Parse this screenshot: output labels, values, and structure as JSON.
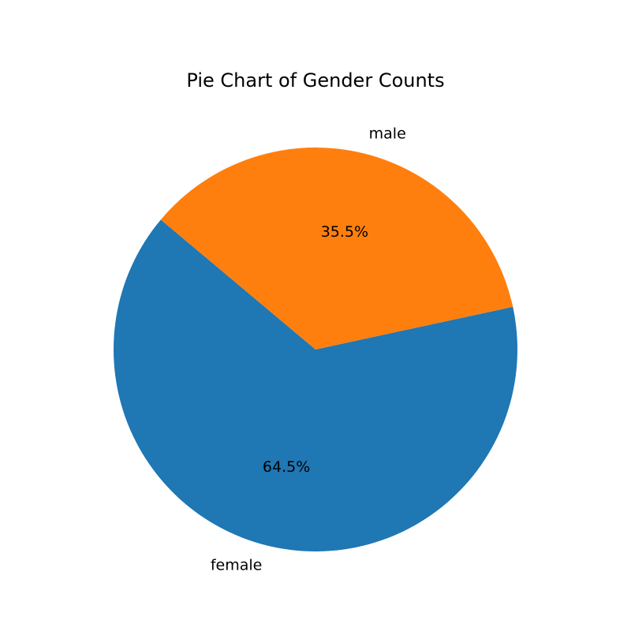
{
  "chart_data": {
    "type": "pie",
    "title": "Pie Chart of Gender Counts",
    "start_angle": 140,
    "slices": [
      {
        "label": "female",
        "value": 64.5,
        "pct_label": "64.5%",
        "color": "#1f77b4"
      },
      {
        "label": "male",
        "value": 35.5,
        "pct_label": "35.5%",
        "color": "#ff7f0e"
      }
    ]
  }
}
